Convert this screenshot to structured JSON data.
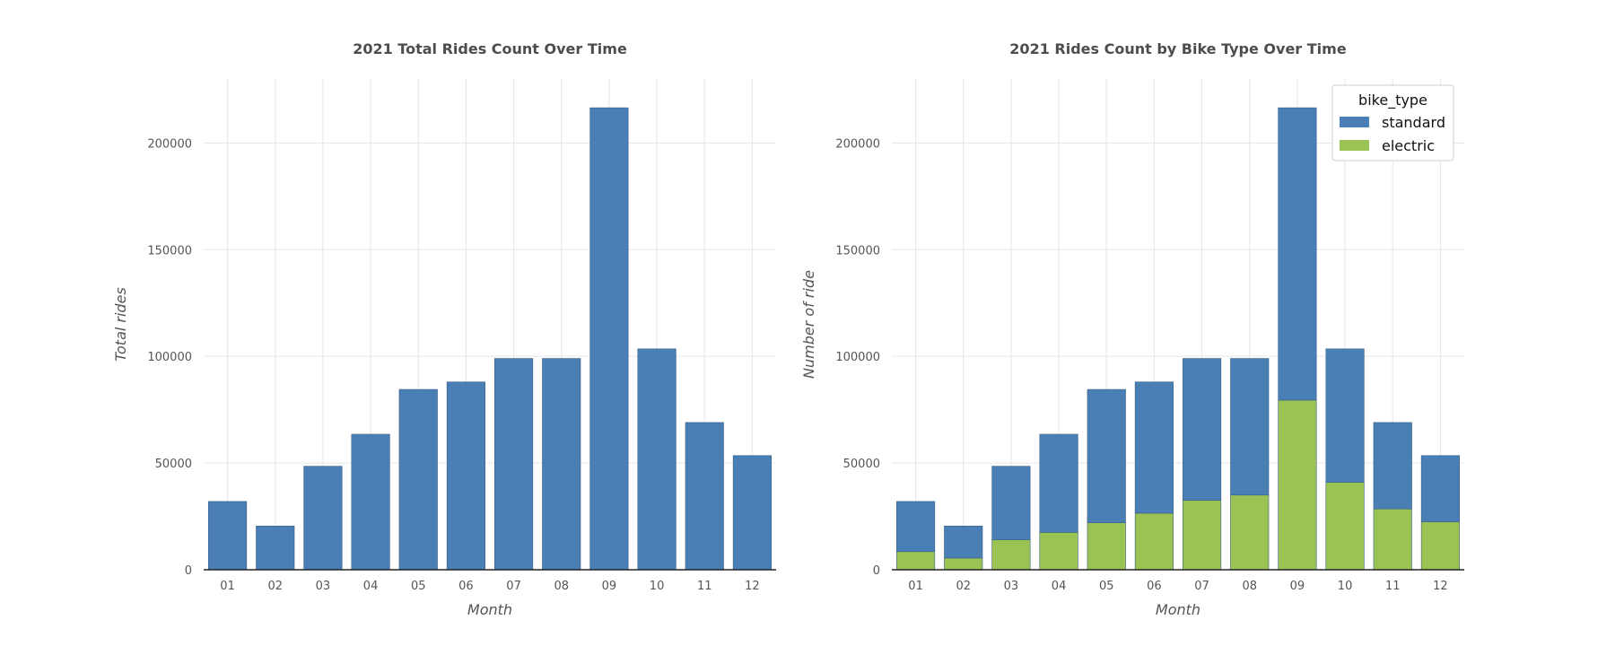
{
  "chart_data": [
    {
      "type": "bar",
      "title": "2021 Total Rides Count Over Time",
      "xlabel": "Month",
      "ylabel": "Total rides",
      "categories": [
        "01",
        "02",
        "03",
        "04",
        "05",
        "06",
        "07",
        "08",
        "09",
        "10",
        "11",
        "12"
      ],
      "values": [
        32000,
        20500,
        48500,
        63500,
        84500,
        88000,
        99000,
        99000,
        216500,
        103500,
        69000,
        53500
      ],
      "ylim": [
        0,
        230000
      ],
      "yticks": [
        0,
        50000,
        100000,
        150000,
        200000
      ],
      "grid": true,
      "colors": {
        "bar": "#4a7fb5"
      }
    },
    {
      "type": "bar",
      "stacked": true,
      "title": "2021 Rides Count by Bike Type Over Time",
      "xlabel": "Month",
      "ylabel": "Number of ride",
      "categories": [
        "01",
        "02",
        "03",
        "04",
        "05",
        "06",
        "07",
        "08",
        "09",
        "10",
        "11",
        "12"
      ],
      "series": [
        {
          "name": "electric",
          "color": "#9bc353",
          "values": [
            8500,
            5500,
            14000,
            17500,
            22000,
            26500,
            32500,
            35000,
            79500,
            41000,
            28500,
            22500
          ]
        },
        {
          "name": "standard",
          "color": "#4a7fb5",
          "values": [
            23500,
            15000,
            34500,
            46000,
            62500,
            61500,
            66500,
            64000,
            137000,
            62500,
            40500,
            31000
          ]
        }
      ],
      "ylim": [
        0,
        230000
      ],
      "yticks": [
        0,
        50000,
        100000,
        150000,
        200000
      ],
      "grid": true,
      "legend": {
        "title": "bike_type",
        "placement": "top-right",
        "entries": [
          {
            "label": "standard",
            "color": "#4a7fb5"
          },
          {
            "label": "electric",
            "color": "#9bc353"
          }
        ]
      }
    }
  ]
}
